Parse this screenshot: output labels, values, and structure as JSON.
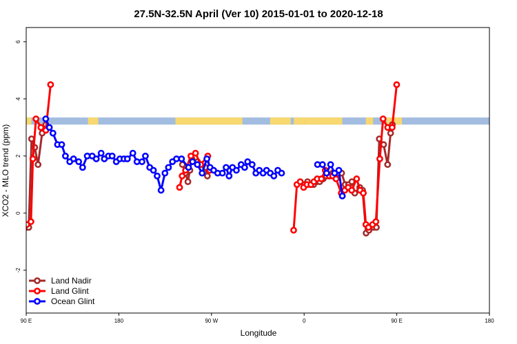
{
  "chart_data": {
    "type": "line",
    "title": "27.5N-32.5N April (Ver 10)   2015-01-01 to 2020-12-18",
    "xlabel": "Longitude",
    "ylabel": "XCO2 - MLO trend (ppm)",
    "xlim": [
      90,
      450
    ],
    "ylim": [
      -3.5,
      6.5
    ],
    "x_ticks": [
      {
        "value": 90,
        "label": "90 E"
      },
      {
        "value": 180,
        "label": "180"
      },
      {
        "value": 270,
        "label": "90 W"
      },
      {
        "value": 360,
        "label": "0"
      },
      {
        "value": 450,
        "label": "90 E"
      },
      {
        "value": 540,
        "label": "180"
      }
    ],
    "y_ticks": [
      {
        "value": -2,
        "label": "-2"
      },
      {
        "value": 0,
        "label": "0"
      },
      {
        "value": 2,
        "label": "2"
      },
      {
        "value": 4,
        "label": "4"
      },
      {
        "value": 6,
        "label": "6"
      }
    ],
    "land_ocean_strip": {
      "y_low": 3.1,
      "y_high": 3.35,
      "ocean_color": "#a3bde0",
      "land_color": "#f8d870"
    },
    "legend_position": "bottom-left",
    "series": [
      {
        "name": "Land Nadir",
        "color": "#a52a2a",
        "points": [
          [
            90.2,
            -0.5
          ],
          [
            92.5,
            -0.5
          ],
          [
            95.2,
            2.6
          ],
          [
            98.3,
            2.3
          ],
          [
            101.5,
            1.7
          ],
          [
            105.5,
            2.8
          ],
          [
            109.1,
            3.1
          ],
          [
            241.8,
            1.7
          ],
          [
            244.8,
            1.4
          ],
          [
            247.1,
            1.1
          ],
          [
            249.0,
            1.5
          ],
          [
            251.0,
            1.9
          ],
          [
            256.5,
            1.8
          ],
          [
            264.0,
            1.6
          ],
          [
            266.0,
            1.3
          ],
          [
            360.4,
            1.0
          ],
          [
            363.3,
            1.1
          ],
          [
            366.1,
            1.0
          ],
          [
            369.2,
            1.0
          ],
          [
            372.3,
            1.1
          ],
          [
            375.1,
            1.1
          ],
          [
            378.5,
            1.2
          ],
          [
            381.5,
            1.3
          ],
          [
            384.4,
            1.3
          ],
          [
            387.6,
            1.4
          ],
          [
            390.9,
            1.3
          ],
          [
            393.3,
            1.4
          ],
          [
            396.4,
            1.4
          ],
          [
            399.9,
            1.0
          ],
          [
            403.2,
            1.0
          ],
          [
            406.4,
            1.1
          ],
          [
            409.2,
            0.7
          ],
          [
            414.0,
            0.9
          ],
          [
            416.8,
            0.8
          ],
          [
            420.2,
            -0.7
          ],
          [
            423.0,
            -0.6
          ],
          [
            427.5,
            -0.5
          ],
          [
            430.2,
            -0.5
          ],
          [
            433.0,
            2.6
          ],
          [
            437.2,
            2.4
          ],
          [
            441.1,
            1.7
          ],
          [
            444.0,
            2.8
          ],
          [
            445.7,
            3.1
          ]
        ]
      },
      {
        "name": "Land Glint",
        "color": "#ff0000",
        "points": [
          [
            90.5,
            -0.4
          ],
          [
            94.6,
            -0.3
          ],
          [
            96.5,
            1.9
          ],
          [
            99.5,
            3.3
          ],
          [
            104.3,
            3.0
          ],
          [
            109.1,
            2.9
          ],
          [
            113.7,
            4.5
          ],
          [
            239.0,
            0.9
          ],
          [
            241.5,
            1.3
          ],
          [
            244.8,
            1.5
          ],
          [
            250.0,
            2.0
          ],
          [
            254.5,
            2.1
          ],
          [
            259.5,
            1.7
          ],
          [
            266.4,
            2.0
          ],
          [
            268.2,
            1.5
          ],
          [
            349.8,
            -0.6
          ],
          [
            353.0,
            1.0
          ],
          [
            356.2,
            1.1
          ],
          [
            359.5,
            0.9
          ],
          [
            362.8,
            1.0
          ],
          [
            366.6,
            1.0
          ],
          [
            369.5,
            1.1
          ],
          [
            372.7,
            1.2
          ],
          [
            376.8,
            1.2
          ],
          [
            380.5,
            1.5
          ],
          [
            384.5,
            1.3
          ],
          [
            387.7,
            1.3
          ],
          [
            391.0,
            1.2
          ],
          [
            396.1,
            0.7
          ],
          [
            399.5,
            0.8
          ],
          [
            402.8,
            0.9
          ],
          [
            406.2,
            0.8
          ],
          [
            411.0,
            1.2
          ],
          [
            414.3,
            0.8
          ],
          [
            417.5,
            0.7
          ],
          [
            420.0,
            -0.4
          ],
          [
            422.5,
            -0.5
          ],
          [
            426.5,
            -0.4
          ],
          [
            429.7,
            -0.3
          ],
          [
            433.5,
            1.9
          ],
          [
            436.7,
            3.3
          ],
          [
            441.2,
            3.0
          ],
          [
            445.5,
            3.0
          ],
          [
            449.9,
            4.5
          ]
        ]
      },
      {
        "name": "Ocean Glint",
        "color": "#0000ff",
        "points": [
          [
            109.0,
            3.3
          ],
          [
            112.5,
            3.0
          ],
          [
            116.0,
            2.8
          ],
          [
            120.4,
            2.4
          ],
          [
            124.5,
            2.4
          ],
          [
            128.1,
            2.0
          ],
          [
            132.3,
            1.8
          ],
          [
            136.0,
            1.9
          ],
          [
            141.0,
            1.8
          ],
          [
            144.8,
            1.6
          ],
          [
            149.3,
            2.0
          ],
          [
            154.1,
            2.0
          ],
          [
            158.1,
            1.9
          ],
          [
            162.8,
            2.1
          ],
          [
            165.9,
            1.9
          ],
          [
            169.9,
            2.0
          ],
          [
            173.5,
            2.0
          ],
          [
            177.5,
            1.8
          ],
          [
            181.0,
            1.9
          ],
          [
            185.0,
            1.9
          ],
          [
            188.3,
            1.9
          ],
          [
            193.6,
            2.1
          ],
          [
            197.6,
            1.8
          ],
          [
            202.5,
            1.8
          ],
          [
            205.8,
            2.0
          ],
          [
            210.0,
            1.6
          ],
          [
            213.6,
            1.5
          ],
          [
            217.2,
            1.3
          ],
          [
            221.0,
            0.8
          ],
          [
            224.8,
            1.4
          ],
          [
            228.2,
            1.6
          ],
          [
            232.1,
            1.8
          ],
          [
            236.0,
            1.9
          ],
          [
            240.9,
            1.9
          ],
          [
            247.7,
            1.6
          ],
          [
            251.6,
            1.8
          ],
          [
            256.3,
            1.7
          ],
          [
            260.9,
            1.4
          ],
          [
            265.5,
            1.9
          ],
          [
            268.6,
            1.6
          ],
          [
            272.1,
            1.5
          ],
          [
            276.0,
            1.4
          ],
          [
            280.6,
            1.4
          ],
          [
            284.2,
            1.6
          ],
          [
            287.1,
            1.3
          ],
          [
            290.4,
            1.6
          ],
          [
            294.2,
            1.5
          ],
          [
            298.8,
            1.7
          ],
          [
            302.2,
            1.6
          ],
          [
            305.1,
            1.8
          ],
          [
            309.5,
            1.7
          ],
          [
            313.1,
            1.4
          ],
          [
            316.5,
            1.5
          ],
          [
            320.1,
            1.4
          ],
          [
            323.5,
            1.5
          ],
          [
            327.1,
            1.4
          ],
          [
            330.6,
            1.3
          ],
          [
            334.4,
            1.5
          ],
          [
            338.1,
            1.4
          ],
          [
            373.0,
            1.7
          ],
          [
            377.8,
            1.7
          ],
          [
            381.8,
            1.4
          ],
          [
            385.7,
            1.7
          ],
          [
            389.6,
            1.4
          ],
          [
            393.7,
            1.5
          ],
          [
            397.1,
            0.6
          ]
        ]
      }
    ]
  }
}
